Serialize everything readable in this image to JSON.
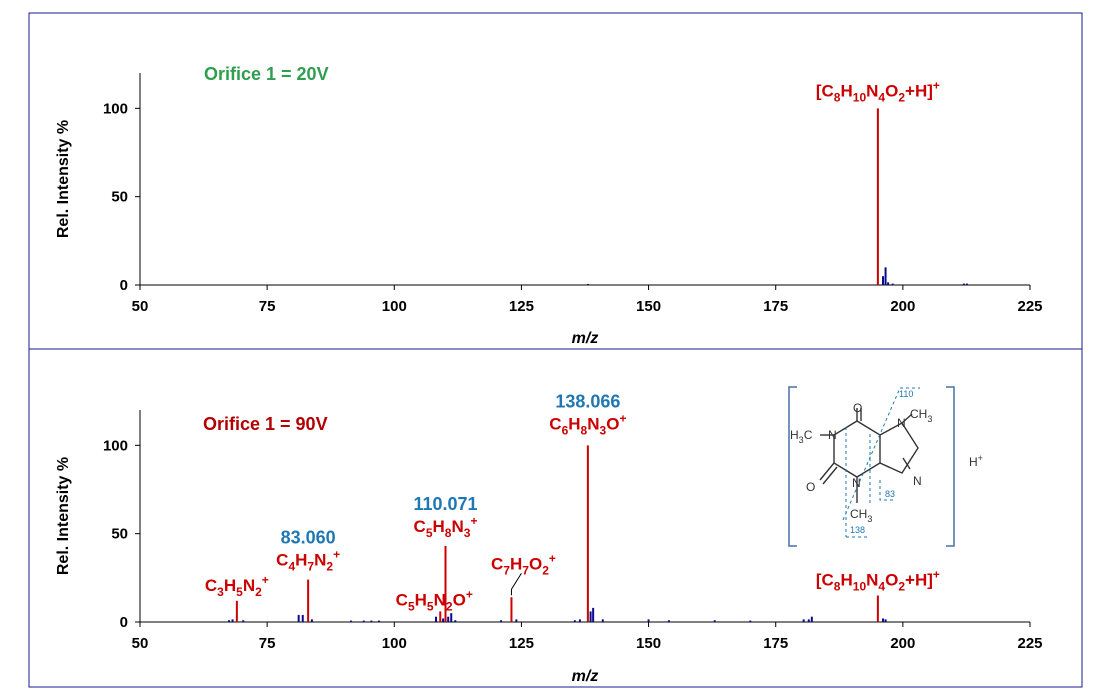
{
  "colors": {
    "frame": "#1a1a8c",
    "fragment": "#cc0000",
    "other": "#0a0a8c",
    "mass": "#1f77b4",
    "cond1": "#2e9e4f",
    "cond2": "#b30000"
  },
  "chart_data": [
    {
      "type": "bar",
      "condition": "Orifice 1 = 20V",
      "xlabel": "m/z",
      "ylabel": "Rel. Intensity %",
      "xlim": [
        50,
        225
      ],
      "ylim": [
        0,
        120
      ],
      "xticks": [
        "50",
        "75",
        "100",
        "125",
        "150",
        "175",
        "200",
        "225"
      ],
      "yticks": [
        "0",
        "50",
        "100"
      ],
      "series": [
        {
          "name": "labeled",
          "points": [
            {
              "x": 195.088,
              "y": 100
            }
          ]
        },
        {
          "name": "other",
          "points": [
            {
              "x": 138.1,
              "y": 0.6
            },
            {
              "x": 196.1,
              "y": 5
            },
            {
              "x": 196.6,
              "y": 10
            },
            {
              "x": 197.1,
              "y": 1.5
            },
            {
              "x": 198.0,
              "y": 0.8
            },
            {
              "x": 212.0,
              "y": 0.8
            },
            {
              "x": 212.6,
              "y": 0.8
            }
          ]
        }
      ],
      "annotations": [
        {
          "x": 195.088,
          "y": 100,
          "parts": [
            [
              "[C",
              "n"
            ],
            [
              "8",
              "sub"
            ],
            [
              "H",
              "n"
            ],
            [
              "10",
              "sub"
            ],
            [
              "N",
              "n"
            ],
            [
              "4",
              "sub"
            ],
            [
              "O",
              "n"
            ],
            [
              "2",
              "sub"
            ],
            [
              "+H]",
              "n"
            ],
            [
              "+",
              "sup"
            ]
          ]
        }
      ]
    },
    {
      "type": "bar",
      "condition": "Orifice 1 = 90V",
      "xlabel": "m/z",
      "ylabel": "Rel. Intensity %",
      "xlim": [
        50,
        225
      ],
      "ylim": [
        0,
        120
      ],
      "xticks": [
        "50",
        "75",
        "100",
        "125",
        "150",
        "175",
        "200",
        "225"
      ],
      "yticks": [
        "0",
        "50",
        "100"
      ],
      "series": [
        {
          "name": "labeled",
          "points": [
            {
              "x": 69.045,
              "y": 12
            },
            {
              "x": 83.06,
              "y": 24
            },
            {
              "x": 109.04,
              "y": 6
            },
            {
              "x": 110.071,
              "y": 43
            },
            {
              "x": 123.04,
              "y": 14
            },
            {
              "x": 138.066,
              "y": 100
            },
            {
              "x": 195.088,
              "y": 15
            }
          ]
        },
        {
          "name": "other",
          "points": [
            {
              "x": 67.5,
              "y": 1
            },
            {
              "x": 68.2,
              "y": 1.5
            },
            {
              "x": 70.3,
              "y": 1
            },
            {
              "x": 81.2,
              "y": 4
            },
            {
              "x": 82.0,
              "y": 4
            },
            {
              "x": 83.8,
              "y": 1.5
            },
            {
              "x": 91.5,
              "y": 0.8
            },
            {
              "x": 94.0,
              "y": 0.8
            },
            {
              "x": 95.5,
              "y": 0.8
            },
            {
              "x": 97.0,
              "y": 0.8
            },
            {
              "x": 108.2,
              "y": 3
            },
            {
              "x": 109.6,
              "y": 2
            },
            {
              "x": 110.6,
              "y": 3
            },
            {
              "x": 111.2,
              "y": 5
            },
            {
              "x": 112.0,
              "y": 1
            },
            {
              "x": 121.0,
              "y": 1
            },
            {
              "x": 124.0,
              "y": 1.5
            },
            {
              "x": 135.5,
              "y": 1
            },
            {
              "x": 136.5,
              "y": 1.5
            },
            {
              "x": 138.6,
              "y": 6
            },
            {
              "x": 139.1,
              "y": 8
            },
            {
              "x": 141.0,
              "y": 1.5
            },
            {
              "x": 150.0,
              "y": 1.5
            },
            {
              "x": 154.0,
              "y": 1
            },
            {
              "x": 163.0,
              "y": 1
            },
            {
              "x": 170.0,
              "y": 0.8
            },
            {
              "x": 180.5,
              "y": 1.5
            },
            {
              "x": 181.5,
              "y": 1.5
            },
            {
              "x": 182.1,
              "y": 3
            },
            {
              "x": 196.1,
              "y": 2
            },
            {
              "x": 196.6,
              "y": 1.5
            }
          ]
        }
      ],
      "annotations": [
        {
          "x": 69.045,
          "y": 12,
          "parts": [
            [
              "C",
              "n"
            ],
            [
              "3",
              "sub"
            ],
            [
              "H",
              "n"
            ],
            [
              "5",
              "sub"
            ],
            [
              "N",
              "n"
            ],
            [
              "2",
              "sub"
            ],
            [
              "+",
              "sup"
            ]
          ]
        },
        {
          "x": 83.06,
          "y": 24,
          "mass": "83.060",
          "parts": [
            [
              "C",
              "n"
            ],
            [
              "4",
              "sub"
            ],
            [
              "H",
              "n"
            ],
            [
              "7",
              "sub"
            ],
            [
              "N",
              "n"
            ],
            [
              "2",
              "sub"
            ],
            [
              "+",
              "sup"
            ]
          ]
        },
        {
          "x": 109.04,
          "y": 6,
          "parts": [
            [
              "C",
              "n"
            ],
            [
              "5",
              "sub"
            ],
            [
              "H",
              "n"
            ],
            [
              "5",
              "sub"
            ],
            [
              "N",
              "n"
            ],
            [
              "2",
              "sub"
            ],
            [
              "O",
              "n"
            ],
            [
              "+",
              "sup"
            ]
          ]
        },
        {
          "x": 110.071,
          "y": 43,
          "mass": "110.071",
          "parts": [
            [
              "C",
              "n"
            ],
            [
              "5",
              "sub"
            ],
            [
              "H",
              "n"
            ],
            [
              "8",
              "sub"
            ],
            [
              "N",
              "n"
            ],
            [
              "3",
              "sub"
            ],
            [
              "+",
              "sup"
            ]
          ]
        },
        {
          "x": 123.04,
          "y": 14,
          "parts": [
            [
              "C",
              "n"
            ],
            [
              "7",
              "sub"
            ],
            [
              "H",
              "n"
            ],
            [
              "7",
              "sub"
            ],
            [
              "O",
              "n"
            ],
            [
              "2",
              "sub"
            ],
            [
              "+",
              "sup"
            ]
          ]
        },
        {
          "x": 138.066,
          "y": 100,
          "mass": "138.066",
          "parts": [
            [
              "C",
              "n"
            ],
            [
              "6",
              "sub"
            ],
            [
              "H",
              "n"
            ],
            [
              "8",
              "sub"
            ],
            [
              "N",
              "n"
            ],
            [
              "3",
              "sub"
            ],
            [
              "O",
              "n"
            ],
            [
              "+",
              "sup"
            ]
          ]
        },
        {
          "x": 195.088,
          "y": 15,
          "parts": [
            [
              "[C",
              "n"
            ],
            [
              "8",
              "sub"
            ],
            [
              "H",
              "n"
            ],
            [
              "10",
              "sub"
            ],
            [
              "N",
              "n"
            ],
            [
              "4",
              "sub"
            ],
            [
              "O",
              "n"
            ],
            [
              "2",
              "sub"
            ],
            [
              "+H]",
              "n"
            ],
            [
              "+",
              "sup"
            ]
          ]
        }
      ]
    }
  ],
  "structure": {
    "atoms": [
      "O",
      "H3C",
      "N",
      "N",
      "CH3",
      "N",
      "N",
      "O",
      "CH3"
    ],
    "cleavage_labels": [
      "110",
      "83",
      "138"
    ],
    "charge": "H+"
  }
}
